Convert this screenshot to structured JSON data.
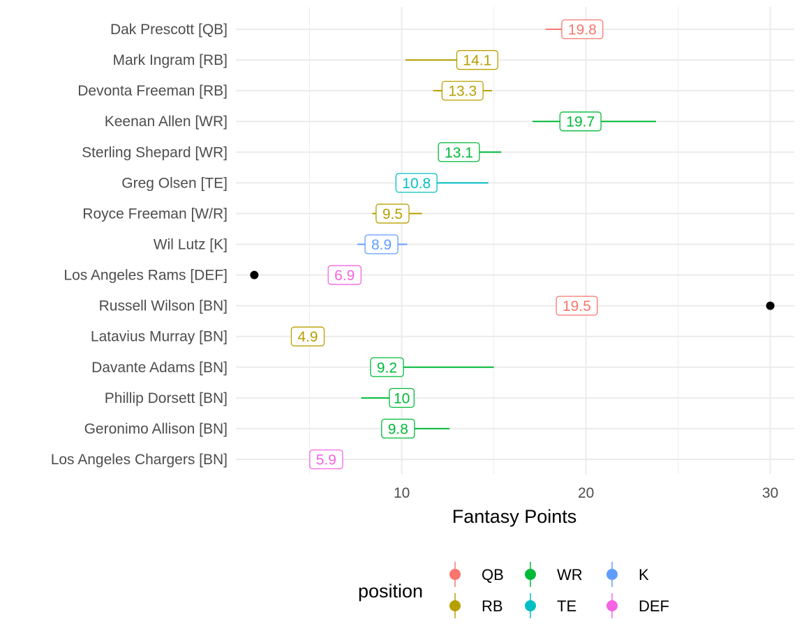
{
  "chart_data": {
    "type": "range-dot",
    "xlabel": "Fantasy Points",
    "ylabel": "",
    "xlim": [
      1,
      31.3
    ],
    "x_ticks": [
      10,
      20,
      30
    ],
    "grid": true,
    "legend": {
      "title": "position",
      "placement": "bottom",
      "entries": [
        {
          "name": "QB",
          "color": "#F8766D"
        },
        {
          "name": "RB",
          "color": "#B79F00"
        },
        {
          "name": "WR",
          "color": "#00BA38"
        },
        {
          "name": "TE",
          "color": "#00BFC4"
        },
        {
          "name": "K",
          "color": "#619CFF"
        },
        {
          "name": "DEF",
          "color": "#F564E3"
        }
      ]
    },
    "players": [
      {
        "label": "Dak Prescott [QB]",
        "position": "QB",
        "value": 19.8,
        "value_label": "19.8",
        "low": 17.8,
        "high": 20.4,
        "outlier": null
      },
      {
        "label": "Mark Ingram [RB]",
        "position": "RB",
        "value": 14.1,
        "value_label": "14.1",
        "low": 10.2,
        "high": 14.5,
        "outlier": null
      },
      {
        "label": "Devonta Freeman [RB]",
        "position": "RB",
        "value": 13.3,
        "value_label": "13.3",
        "low": 11.7,
        "high": 14.9,
        "outlier": null
      },
      {
        "label": "Keenan Allen [WR]",
        "position": "WR",
        "value": 19.7,
        "value_label": "19.7",
        "low": 17.1,
        "high": 23.8,
        "outlier": null
      },
      {
        "label": "Sterling Shepard [WR]",
        "position": "WR",
        "value": 13.1,
        "value_label": "13.1",
        "low": 12.2,
        "high": 15.4,
        "outlier": null
      },
      {
        "label": "Greg Olsen [TE]",
        "position": "TE",
        "value": 10.8,
        "value_label": "10.8",
        "low": 9.9,
        "high": 14.7,
        "outlier": null
      },
      {
        "label": "Royce Freeman [W/R]",
        "position": "RB",
        "value": 9.5,
        "value_label": "9.5",
        "low": 8.4,
        "high": 11.1,
        "outlier": null
      },
      {
        "label": "Wil Lutz [K]",
        "position": "K",
        "value": 8.9,
        "value_label": "8.9",
        "low": 7.6,
        "high": 10.3,
        "outlier": null
      },
      {
        "label": "Los Angeles Rams [DEF]",
        "position": "DEF",
        "value": 6.9,
        "value_label": "6.9",
        "low": null,
        "high": null,
        "outlier": 2.0
      },
      {
        "label": "Russell Wilson [BN]",
        "position": "QB",
        "value": 19.5,
        "value_label": "19.5",
        "low": null,
        "high": null,
        "outlier": 30.0
      },
      {
        "label": "Latavius Murray [BN]",
        "position": "RB",
        "value": 4.9,
        "value_label": "4.9",
        "low": null,
        "high": null,
        "outlier": null
      },
      {
        "label": "Davante Adams [BN]",
        "position": "WR",
        "value": 9.2,
        "value_label": "9.2",
        "low": 8.3,
        "high": 15.0,
        "outlier": null
      },
      {
        "label": "Phillip Dorsett [BN]",
        "position": "WR",
        "value": 10.0,
        "value_label": "10",
        "low": 7.8,
        "high": 10.6,
        "outlier": null
      },
      {
        "label": "Geronimo Allison [BN]",
        "position": "WR",
        "value": 9.8,
        "value_label": "9.8",
        "low": 9.0,
        "high": 12.6,
        "outlier": null
      },
      {
        "label": "Los Angeles Chargers [BN]",
        "position": "DEF",
        "value": 5.9,
        "value_label": "5.9",
        "low": 5.3,
        "high": 6.8,
        "outlier": null
      }
    ]
  }
}
